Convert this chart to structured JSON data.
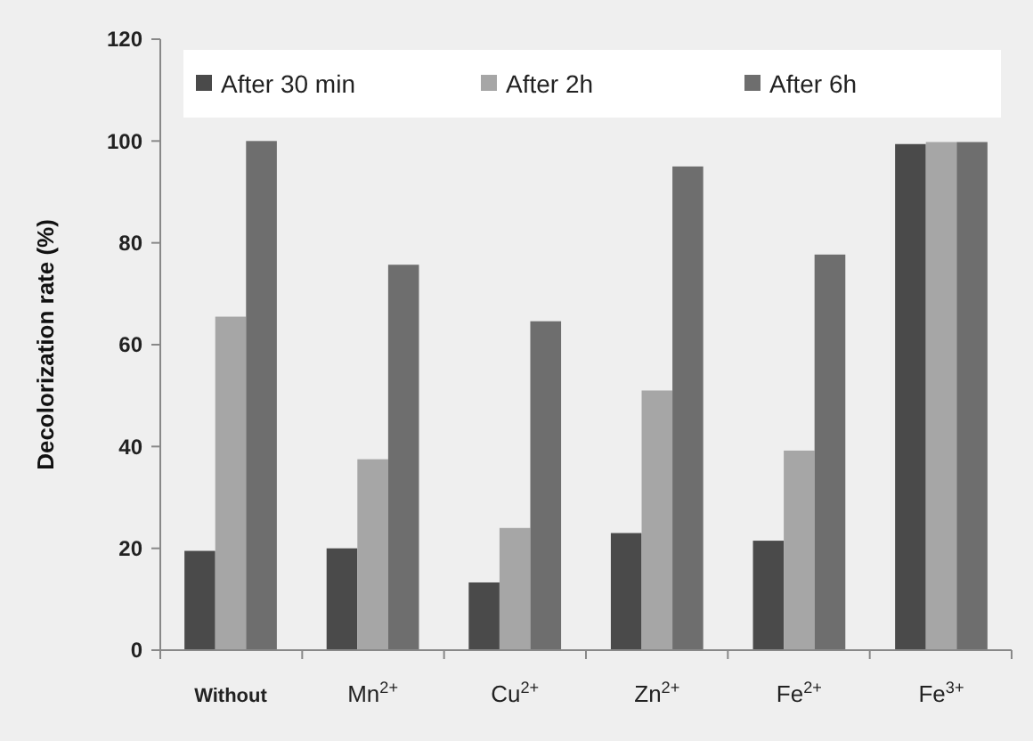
{
  "chart_data": {
    "type": "bar",
    "ylabel": "Decolorization rate (%)",
    "categories": [
      "Without",
      "Mn$^{2+}$",
      "Cu$^{2+}$",
      "Zn$^{2+}$",
      "Fe$^{2+}$",
      "Fe$^{3+}$"
    ],
    "series": [
      {
        "name": "After 30 min",
        "color": "#4a4a4a",
        "values": [
          19.5,
          20,
          13.3,
          23,
          21.5,
          99.4
        ]
      },
      {
        "name": "After 2h",
        "color": "#a6a6a6",
        "values": [
          65.5,
          37.5,
          24,
          51,
          39.2,
          99.8
        ]
      },
      {
        "name": "After 6h",
        "color": "#6e6e6e",
        "values": [
          100,
          75.7,
          64.6,
          95,
          77.7,
          99.8
        ]
      }
    ],
    "ylim": [
      0,
      120
    ],
    "yticks": [
      0,
      20,
      40,
      60,
      80,
      100,
      120
    ],
    "grid": false,
    "legend": "top"
  }
}
